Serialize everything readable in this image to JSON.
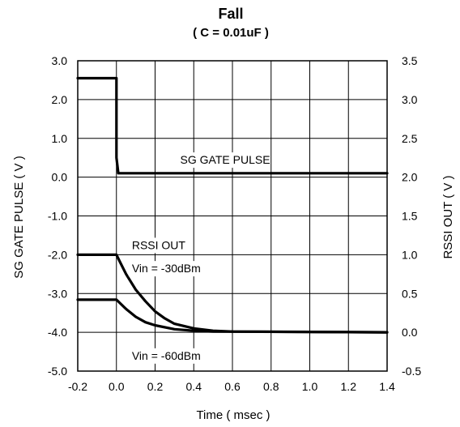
{
  "chart_data": {
    "type": "line",
    "title": "Fall",
    "subtitle": "( C = 0.01uF )",
    "xlabel": "Time ( msec )",
    "ylabel_left": "SG GATE PULSE ( V )",
    "ylabel_right": "RSSI OUT ( V )",
    "xlim": [
      -0.2,
      1.4
    ],
    "ylim_left": [
      -5.0,
      3.0
    ],
    "ylim_right": [
      -0.5,
      3.5
    ],
    "x_ticks": [
      "-0.2",
      "0.0",
      "0.2",
      "0.4",
      "0.6",
      "0.8",
      "1.0",
      "1.2",
      "1.4"
    ],
    "y_ticks_left": [
      "3.0",
      "2.0",
      "1.0",
      "0.0",
      "-1.0",
      "-2.0",
      "-3.0",
      "-4.0",
      "-5.0"
    ],
    "y_ticks_right": [
      "3.5",
      "3.0",
      "2.5",
      "2.0",
      "1.5",
      "1.0",
      "0.5",
      "0.0",
      "-0.5"
    ],
    "grid": true,
    "series": [
      {
        "name": "SG GATE PULSE",
        "axis": "left",
        "x": [
          -0.2,
          0.0,
          0.0,
          0.01,
          1.4
        ],
        "y": [
          2.55,
          2.55,
          0.5,
          0.1,
          0.1
        ]
      },
      {
        "name": "RSSI OUT",
        "annotation": "Vin = -30dBm",
        "axis": "right",
        "x": [
          -0.2,
          0.0,
          0.02,
          0.05,
          0.1,
          0.15,
          0.2,
          0.25,
          0.3,
          0.4,
          0.5,
          0.6,
          1.4
        ],
        "y": [
          1.0,
          1.0,
          0.9,
          0.75,
          0.55,
          0.4,
          0.27,
          0.18,
          0.11,
          0.05,
          0.02,
          0.01,
          0.0
        ]
      },
      {
        "name": "",
        "annotation": "Vin = -60dBm",
        "axis": "right",
        "x": [
          -0.2,
          0.0,
          0.05,
          0.1,
          0.15,
          0.2,
          0.3,
          0.4,
          0.5,
          1.4
        ],
        "y": [
          0.42,
          0.42,
          0.3,
          0.2,
          0.13,
          0.09,
          0.04,
          0.02,
          0.01,
          0.0
        ]
      }
    ],
    "annotations": [
      {
        "text": "SG GATE PULSE",
        "x": 0.33,
        "y_left": 0.45
      },
      {
        "text": "RSSI OUT",
        "x": 0.08,
        "y_left": -1.75
      },
      {
        "text": "Vin = -30dBm",
        "x": 0.08,
        "y_left": -2.35
      },
      {
        "text": "Vin = -60dBm",
        "x": 0.08,
        "y_left": -4.6
      }
    ]
  }
}
